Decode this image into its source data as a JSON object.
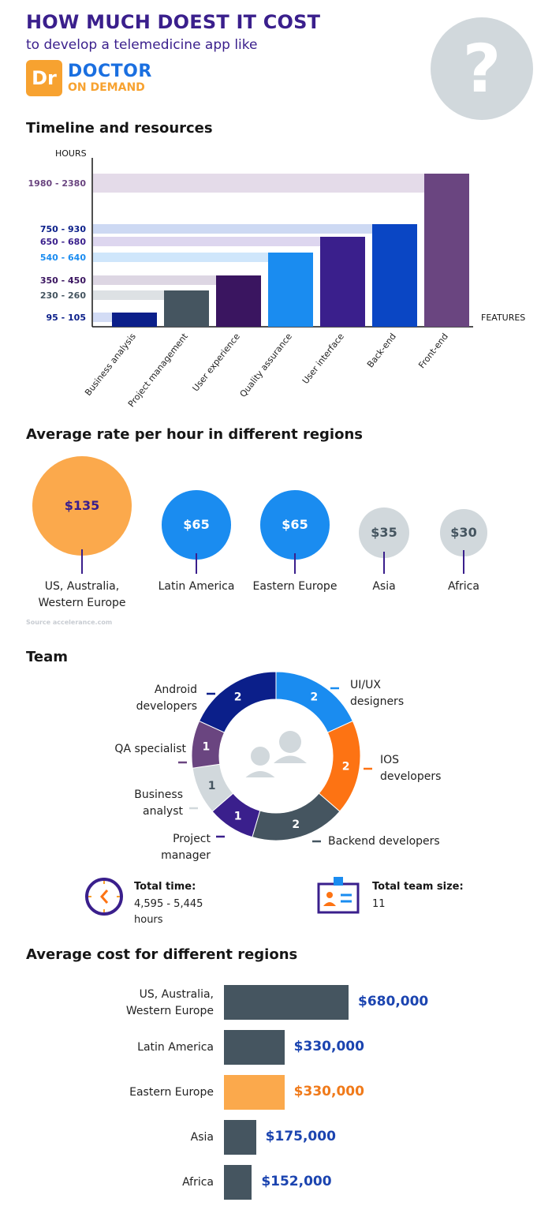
{
  "header": {
    "title": "HOW MUCH DOEST IT COST",
    "subtitle": "to develop a telemedicine app like",
    "logo_mark": "Dr",
    "logo_line1": "DOCTOR",
    "logo_line2": "ON DEMAND",
    "question_mark": "?"
  },
  "timeline": {
    "section_title": "Timeline and resources"
  },
  "regions": {
    "section_title": "Average rate per hour in different regions",
    "source": "Source accelerance.com"
  },
  "team": {
    "section_title": "Team",
    "total_time_label": "Total time:",
    "total_time_value_1": "4,595 - 5,445",
    "total_time_value_2": "hours",
    "total_size_label": "Total team size:",
    "total_size_value": "11"
  },
  "cost": {
    "section_title": "Average cost for different regions"
  },
  "colors": {
    "title": "#3a1f8c",
    "accent_orange": "#f7a230",
    "bar_grey": "#455560",
    "value_blue": "#1b44b0"
  },
  "chart_data": [
    {
      "type": "bar",
      "title": "Timeline and resources",
      "ylabel": "HOURS",
      "xlabel": "FEATURES",
      "categories": [
        "Business analysis",
        "Project management",
        "User experience",
        "Quality assurance",
        "User interface",
        "Back-end",
        "Front-end"
      ],
      "range_labels": [
        "95 - 105",
        "230 - 260",
        "350 - 450",
        "540 - 640",
        "650 - 680",
        "750 - 930",
        "1980 - 2380"
      ],
      "ranges": [
        [
          95,
          105
        ],
        [
          230,
          260
        ],
        [
          350,
          450
        ],
        [
          540,
          640
        ],
        [
          650,
          680
        ],
        [
          750,
          930
        ],
        [
          1980,
          2380
        ]
      ],
      "values": [
        100,
        245,
        400,
        590,
        665,
        840,
        2180
      ],
      "colors": [
        "#0b1f8a",
        "#455560",
        "#3a1560",
        "#1a8cf0",
        "#3a1f8c",
        "#0a46c4",
        "#6a4580"
      ],
      "band_colors": [
        "#d3dcf5",
        "#dde1e4",
        "#ddd6e3",
        "#cfe6fb",
        "#ddd6ef",
        "#cdd9f3",
        "#e4dbe9"
      ],
      "label_colors": [
        "#0b1f8a",
        "#455560",
        "#3a1560",
        "#1a8cf0",
        "#3a1f8c",
        "#0b1f8a",
        "#6a4580"
      ]
    },
    {
      "type": "scatter",
      "title": "Average rate per hour in different regions",
      "categories": [
        "US, Australia, Western Europe",
        "Latin America",
        "Eastern Europe",
        "Asia",
        "Africa"
      ],
      "label_lines": [
        [
          "US, Australia,",
          "Western Europe"
        ],
        [
          "Latin America"
        ],
        [
          "Eastern Europe"
        ],
        [
          "Asia"
        ],
        [
          "Africa"
        ]
      ],
      "value_labels": [
        "$135",
        "$65",
        "$65",
        "$35",
        "$30"
      ],
      "values": [
        135,
        65,
        65,
        35,
        30
      ],
      "colors": [
        "#fba94c",
        "#1a8cf0",
        "#1a8cf0",
        "#d1d8dc",
        "#d1d8dc"
      ],
      "text_colors": [
        "#3a1f8c",
        "#ffffff",
        "#ffffff",
        "#455560",
        "#455560"
      ]
    },
    {
      "type": "pie",
      "title": "Team",
      "categories": [
        "UI/UX designers",
        "IOS developers",
        "Backend developers",
        "Project manager",
        "Business analyst",
        "QA specialist",
        "Android developers"
      ],
      "label_lines": [
        [
          "UI/UX",
          "designers"
        ],
        [
          "IOS",
          "developers"
        ],
        [
          "Backend developers"
        ],
        [
          "Project",
          "manager"
        ],
        [
          "Business",
          "analyst"
        ],
        [
          "QA specialist"
        ],
        [
          "Android",
          "developers"
        ]
      ],
      "values": [
        2,
        2,
        2,
        1,
        1,
        1,
        2
      ],
      "colors": [
        "#1a8cf0",
        "#fd7313",
        "#455560",
        "#3a1f8c",
        "#d1d8dc",
        "#6a4580",
        "#0b1f8a"
      ],
      "text_colors": [
        "#ffffff",
        "#ffffff",
        "#ffffff",
        "#ffffff",
        "#455560",
        "#ffffff",
        "#ffffff"
      ]
    },
    {
      "type": "bar",
      "title": "Average cost for different regions",
      "categories": [
        "US, Australia, Western Europe",
        "Latin America",
        "Eastern Europe",
        "Asia",
        "Africa"
      ],
      "label_lines": [
        [
          "US, Australia,",
          "Western Europe"
        ],
        [
          "Latin America"
        ],
        [
          "Eastern Europe"
        ],
        [
          "Asia"
        ],
        [
          "Africa"
        ]
      ],
      "value_labels": [
        "$680,000",
        "$330,000",
        "$330,000",
        "$175,000",
        "$152,000"
      ],
      "values": [
        680000,
        330000,
        330000,
        175000,
        152000
      ],
      "colors": [
        "#455560",
        "#455560",
        "#fba94c",
        "#455560",
        "#455560"
      ],
      "text_colors": [
        "#1b44b0",
        "#1b44b0",
        "#f07a1a",
        "#1b44b0",
        "#1b44b0"
      ]
    }
  ]
}
